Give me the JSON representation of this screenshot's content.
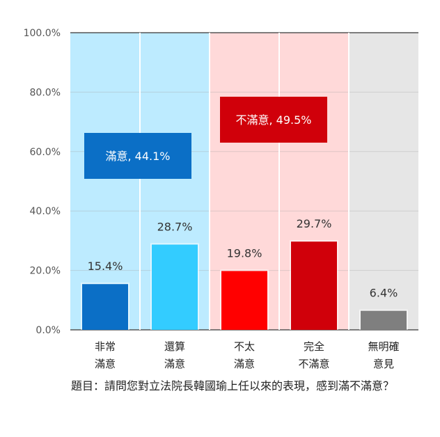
{
  "chart_data": {
    "type": "bar",
    "categories": [
      [
        "非常",
        "滿意"
      ],
      [
        "還算",
        "滿意"
      ],
      [
        "不太",
        "滿意"
      ],
      [
        "完全",
        "不滿意"
      ],
      [
        "無明確",
        "意見"
      ]
    ],
    "values": [
      15.4,
      28.7,
      19.8,
      29.7,
      6.4
    ],
    "value_labels": [
      "15.4%",
      "28.7%",
      "19.8%",
      "29.7%",
      "6.4%"
    ],
    "bar_colors": [
      "#0B6FC6",
      "#33CCFF",
      "#FF0000",
      "#D0000A",
      "#7F7F7F"
    ],
    "ylim": [
      0,
      100
    ],
    "yticks": [
      "0.0%",
      "20.0%",
      "40.0%",
      "60.0%",
      "80.0%",
      "100.0%"
    ],
    "grid": true,
    "background_bands": [
      {
        "from": 0,
        "to": 2,
        "color": "#BDEBFF"
      },
      {
        "from": 2,
        "to": 4,
        "color": "#FFD9D9"
      },
      {
        "from": 4,
        "to": 5,
        "color": "#E6E6E6"
      }
    ],
    "group_labels": [
      {
        "text": "滿意, 44.1%",
        "value": 44.1,
        "color": "#0B6FC6"
      },
      {
        "text": "不滿意, 49.5%",
        "value": 49.5,
        "color": "#D0000A"
      }
    ]
  },
  "question": "題目：請問您對立法院長韓國瑜上任以來的表現，感到滿不滿意？"
}
